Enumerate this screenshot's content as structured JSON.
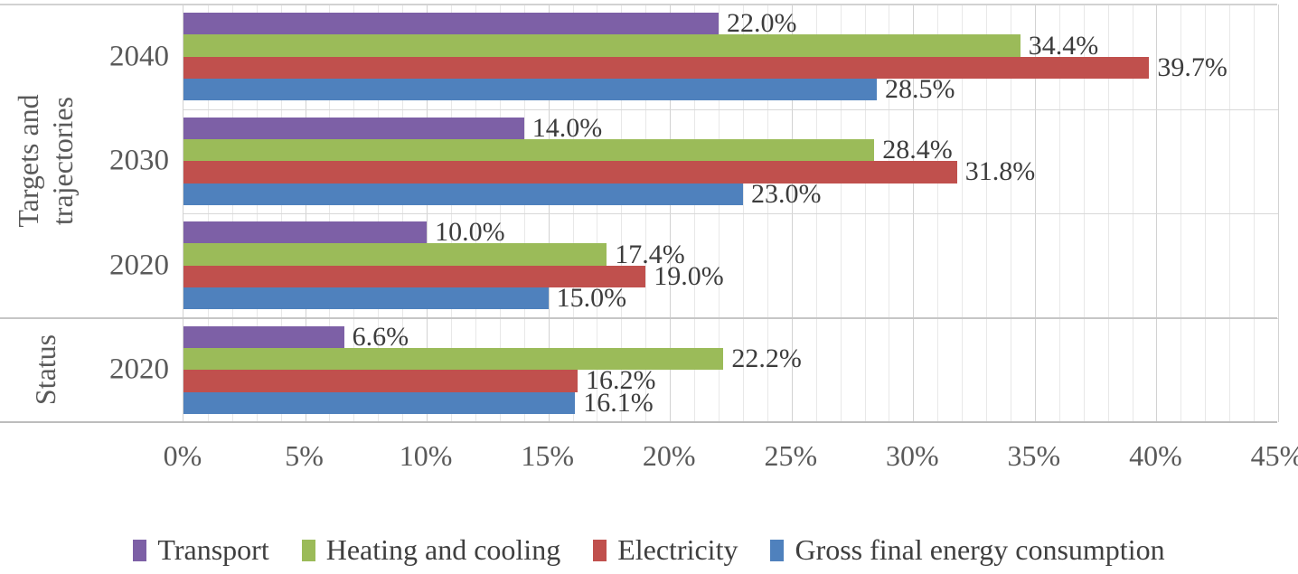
{
  "chart_data": {
    "type": "bar",
    "orientation": "horizontal",
    "title": "",
    "xlabel": "",
    "ylabel": "",
    "xlim": [
      0,
      45
    ],
    "x_tick_step": 5,
    "x_minor_grid_step": 1,
    "x_tick_labels": [
      "0%",
      "5%",
      "10%",
      "15%",
      "20%",
      "25%",
      "30%",
      "35%",
      "40%",
      "45%"
    ],
    "grid": "vertical minor (1%) and major (5%) gridlines on",
    "legend_position": "bottom",
    "sections": [
      {
        "label": "Targets and trajectories",
        "lines": [
          "Targets and",
          "trajectories"
        ],
        "rows": [
          "2040",
          "2030",
          "2020"
        ]
      },
      {
        "label": "Status",
        "lines": [
          "Status"
        ],
        "rows": [
          "2020"
        ]
      }
    ],
    "categories": [
      "2040",
      "2030",
      "2020",
      "2020"
    ],
    "series": [
      {
        "name": "Transport",
        "color": "#7D60A6",
        "values": [
          22.0,
          14.0,
          10.0,
          6.6
        ],
        "labels": [
          "22.0%",
          "14.0%",
          "10.0%",
          "6.6%"
        ]
      },
      {
        "name": "Heating and cooling",
        "color": "#9BBB59",
        "values": [
          34.4,
          28.4,
          17.4,
          22.2
        ],
        "labels": [
          "34.4%",
          "28.4%",
          "17.4%",
          "22.2%"
        ]
      },
      {
        "name": "Electricity",
        "color": "#C0504D",
        "values": [
          39.7,
          31.8,
          19.0,
          16.2
        ],
        "labels": [
          "39.7%",
          "31.8%",
          "19.0%",
          "16.2%"
        ]
      },
      {
        "name": "Gross final energy consumption",
        "color": "#4F81BD",
        "values": [
          28.5,
          23.0,
          15.0,
          16.1
        ],
        "labels": [
          "28.5%",
          "23.0%",
          "15.0%",
          "16.1%"
        ]
      }
    ]
  },
  "colors": {
    "grid_minor": "#E8E8E8",
    "grid_major": "#D2D2D2",
    "axis_line": "#BDBDBD",
    "section_separator": "#C6C6C6",
    "label_text": "#3C3C3C",
    "axis_text": "#595959",
    "background": "#FFFFFF"
  }
}
